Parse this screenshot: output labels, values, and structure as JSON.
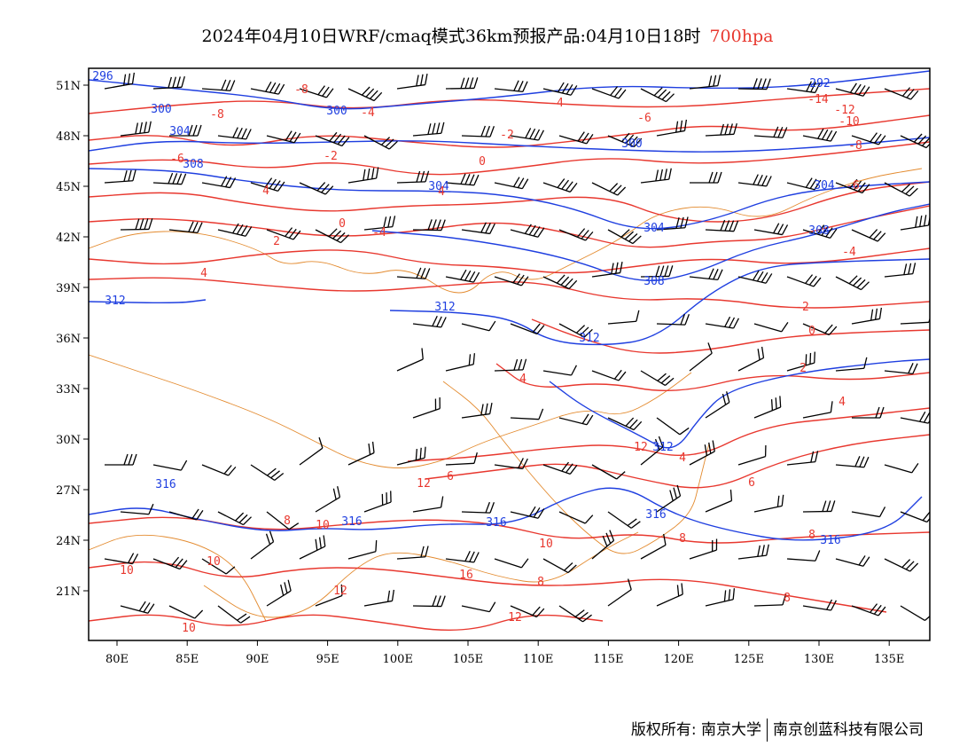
{
  "title": {
    "main": "2024年04月10日WRF/cmaq模式36km预报产品:04月10日18时",
    "level": "700hpa"
  },
  "axes": {
    "x_ticks": [
      "80E",
      "85E",
      "90E",
      "95E",
      "100E",
      "105E",
      "110E",
      "115E",
      "120E",
      "125E",
      "130E",
      "135E"
    ],
    "y_ticks": [
      "51N",
      "48N",
      "45N",
      "42N",
      "39N",
      "36N",
      "33N",
      "30N",
      "27N",
      "24N",
      "21N"
    ]
  },
  "colors": {
    "height_contour": "#1f3fe0",
    "temp_contour": "#e8382f",
    "boundary": "#e38a2e",
    "wind_barb": "#000000"
  },
  "contour_labels": {
    "height": [
      "296",
      "300",
      "300",
      "304",
      "308",
      "304",
      "304",
      "300",
      "292",
      "304",
      "308",
      "308",
      "312",
      "312",
      "312",
      "312",
      "316",
      "316",
      "316",
      "316",
      "316"
    ],
    "temperature": [
      "-8",
      "-8",
      "-4",
      "-6",
      "-4",
      "-2",
      "-2",
      "0",
      "-6",
      "-10",
      "-14",
      "-12",
      "-8",
      "-6",
      "4",
      "2",
      "0",
      "-4",
      "4",
      "4",
      "-4",
      "-2",
      "0",
      "2",
      "4",
      "6",
      "4",
      "4",
      "6",
      "12",
      "8",
      "10",
      "10",
      "10",
      "12",
      "16",
      "12",
      "10",
      "8",
      "8",
      "8",
      "10",
      "12",
      "8"
    ]
  },
  "copyright": {
    "left": "版权所有: 南京大学",
    "right": "南京创蓝科技有限公司"
  }
}
